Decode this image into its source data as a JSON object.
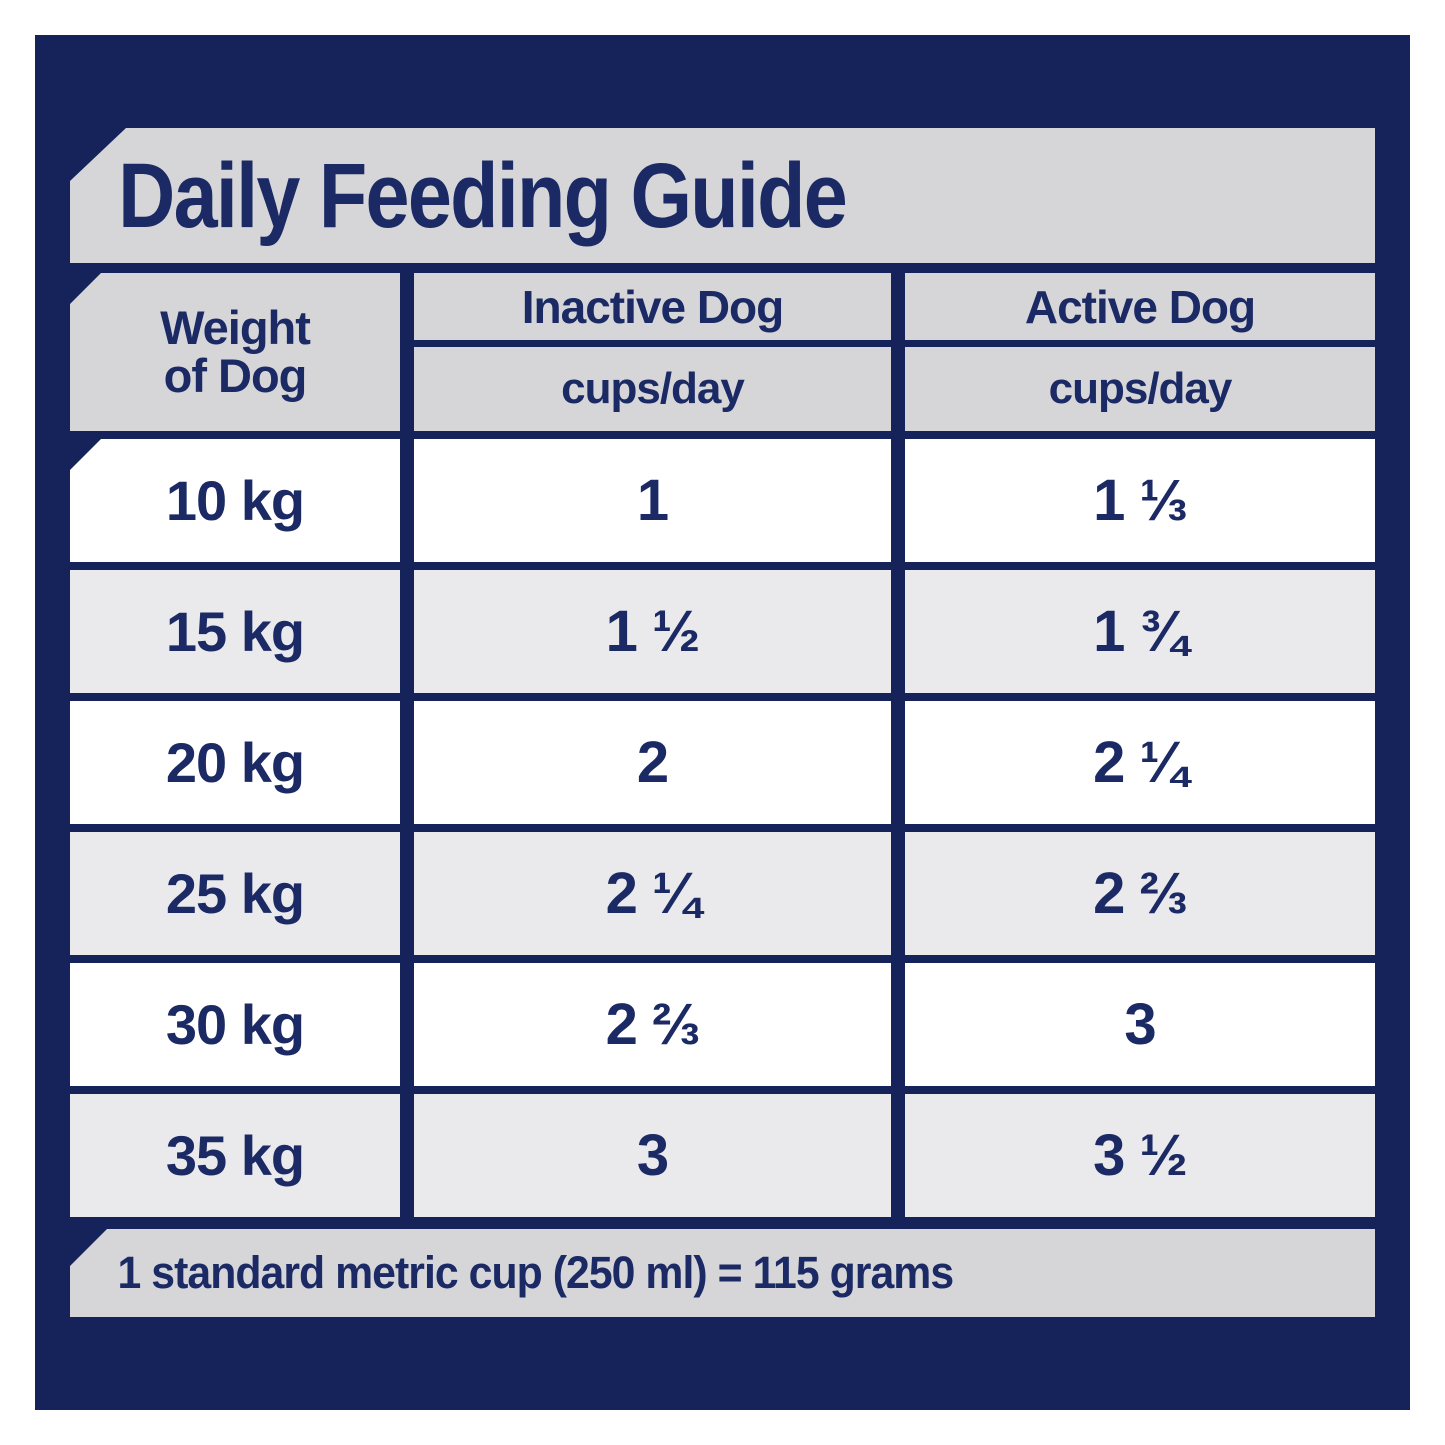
{
  "title": "Daily Feeding Guide",
  "footnote": "1 standard metric cup (250 ml) = 115 grams",
  "colors": {
    "navy": "#15235a",
    "text_navy": "#1b2a64",
    "bar_gray": "#d6d6d9",
    "row_gray": "#eaeaed",
    "row_white": "#ffffff"
  },
  "chart_data": {
    "type": "table",
    "title": "Daily Feeding Guide",
    "columns": [
      "Weight of Dog",
      "Inactive Dog (cups/day)",
      "Active Dog (cups/day)"
    ],
    "header": {
      "weight_line1": "Weight",
      "weight_line2": "of Dog",
      "inactive_label": "Inactive Dog",
      "active_label": "Active Dog",
      "unit_label": "cups/day"
    },
    "rows": [
      {
        "weight": "10 kg",
        "inactive_cups": "1",
        "active_cups": "1 ⅓"
      },
      {
        "weight": "15 kg",
        "inactive_cups": "1 ½",
        "active_cups": "1 ¾"
      },
      {
        "weight": "20 kg",
        "inactive_cups": "2",
        "active_cups": "2 ¼"
      },
      {
        "weight": "25 kg",
        "inactive_cups": "2 ¼",
        "active_cups": "2 ⅔"
      },
      {
        "weight": "30 kg",
        "inactive_cups": "2 ⅔",
        "active_cups": "3"
      },
      {
        "weight": "35 kg",
        "inactive_cups": "3",
        "active_cups": "3 ½"
      }
    ],
    "footnote": "1 standard metric cup (250 ml) = 115 grams"
  }
}
